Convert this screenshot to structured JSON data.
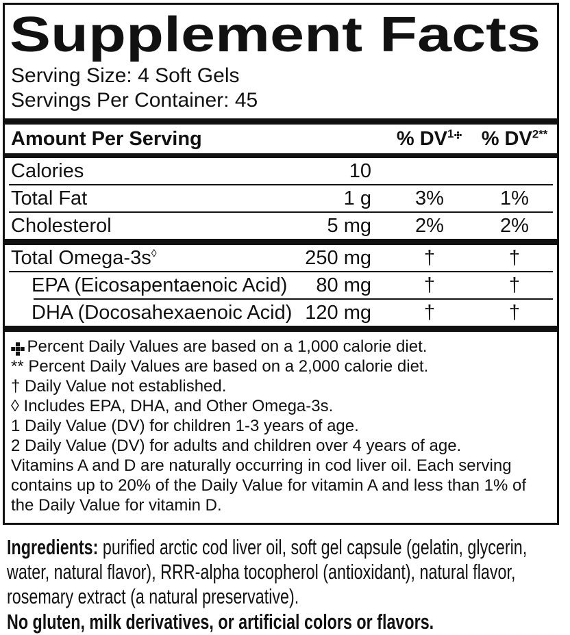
{
  "colors": {
    "text": "#111111",
    "background": "#ffffff",
    "border": "#111111"
  },
  "panel": {
    "title": "Supplement Facts",
    "serving_size": "Serving Size: 4 Soft Gels",
    "servings_per_container": "Servings Per Container: 45",
    "columns": {
      "amount_header": "Amount Per Serving",
      "dv1_label": "% DV",
      "dv1_sup": "1",
      "dv1_icon": "cross-icon",
      "dv2_label": "% DV",
      "dv2_sup": "2**"
    },
    "rows": [
      {
        "name": "Calories",
        "amount": "10",
        "dv1": "",
        "dv2": ""
      },
      {
        "name": "Total Fat",
        "amount": "1 g",
        "dv1": "3%",
        "dv2": "1%"
      },
      {
        "name": "Cholesterol",
        "amount": "5 mg",
        "dv1": "2%",
        "dv2": "2%"
      },
      {
        "name": "Total Omega-3s",
        "name_sup": "◊",
        "amount": "250 mg",
        "dv1": "†",
        "dv2": "†"
      },
      {
        "name": "EPA (Eicosapentaenoic Acid)",
        "amount": "80 mg",
        "dv1": "†",
        "dv2": "†",
        "indented": true
      },
      {
        "name": "DHA (Docosahexaenoic Acid)",
        "amount": "120 mg",
        "dv1": "†",
        "dv2": "†",
        "indented": true
      }
    ],
    "footnotes": [
      {
        "icon": "cross-icon",
        "text": "Percent Daily Values are based on a 1,000 calorie diet."
      },
      {
        "text": "** Percent Daily Values are based on a 2,000 calorie diet."
      },
      {
        "text": "† Daily Value not established."
      },
      {
        "text": "◊ Includes EPA, DHA, and Other Omega-3s."
      },
      {
        "text": "1 Daily Value (DV) for children 1-3 years of age."
      },
      {
        "text": "2 Daily Value (DV) for adults and children over 4 years of age."
      },
      {
        "text": "Vitamins A and D are naturally occurring in cod liver oil. Each serving contains up to 20% of the Daily Value for vitamin A and less than 1% of the Daily Value for vitamin D."
      }
    ]
  },
  "ingredients": {
    "lead": "Ingredients:",
    "text": " purified arctic cod liver oil, soft gel capsule (gelatin, glycerin, water, natural flavor), RRR-alpha tocopherol (antioxidant), natural flavor, rosemary extract (a natural preservative)."
  },
  "allergen_statement": "No gluten, milk derivatives, or artificial colors or flavors."
}
